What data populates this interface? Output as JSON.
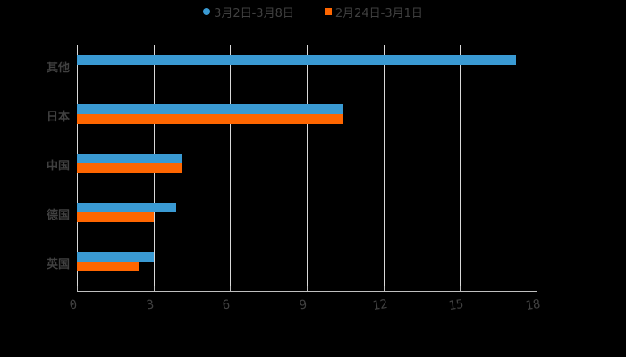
{
  "chart_data": {
    "type": "bar",
    "orientation": "horizontal",
    "title": "",
    "xlabel": "",
    "ylabel": "",
    "xlim": [
      0,
      18
    ],
    "x_ticks": [
      "0",
      "3",
      "6",
      "9",
      "12",
      "15",
      "18"
    ],
    "grid": true,
    "legend_position": "top",
    "categories": [
      "其他",
      "日本",
      "中国",
      "德国",
      "英国"
    ],
    "series": [
      {
        "name": "3月2日-3月8日",
        "color": "#3a9ad3",
        "values": [
          17.2,
          10.4,
          4.1,
          3.9,
          3.0
        ]
      },
      {
        "name": "2月24日-3月1日",
        "color": "#ff6600",
        "values": [
          null,
          10.4,
          4.1,
          3.0,
          2.4
        ]
      }
    ]
  },
  "legend": {
    "series1": {
      "label": "3月2日-3月8日",
      "marker": "circle",
      "color": "#3a9ad3"
    },
    "series2": {
      "label": "2月24日-3月1日",
      "marker": "square",
      "color": "#ff6600"
    }
  }
}
